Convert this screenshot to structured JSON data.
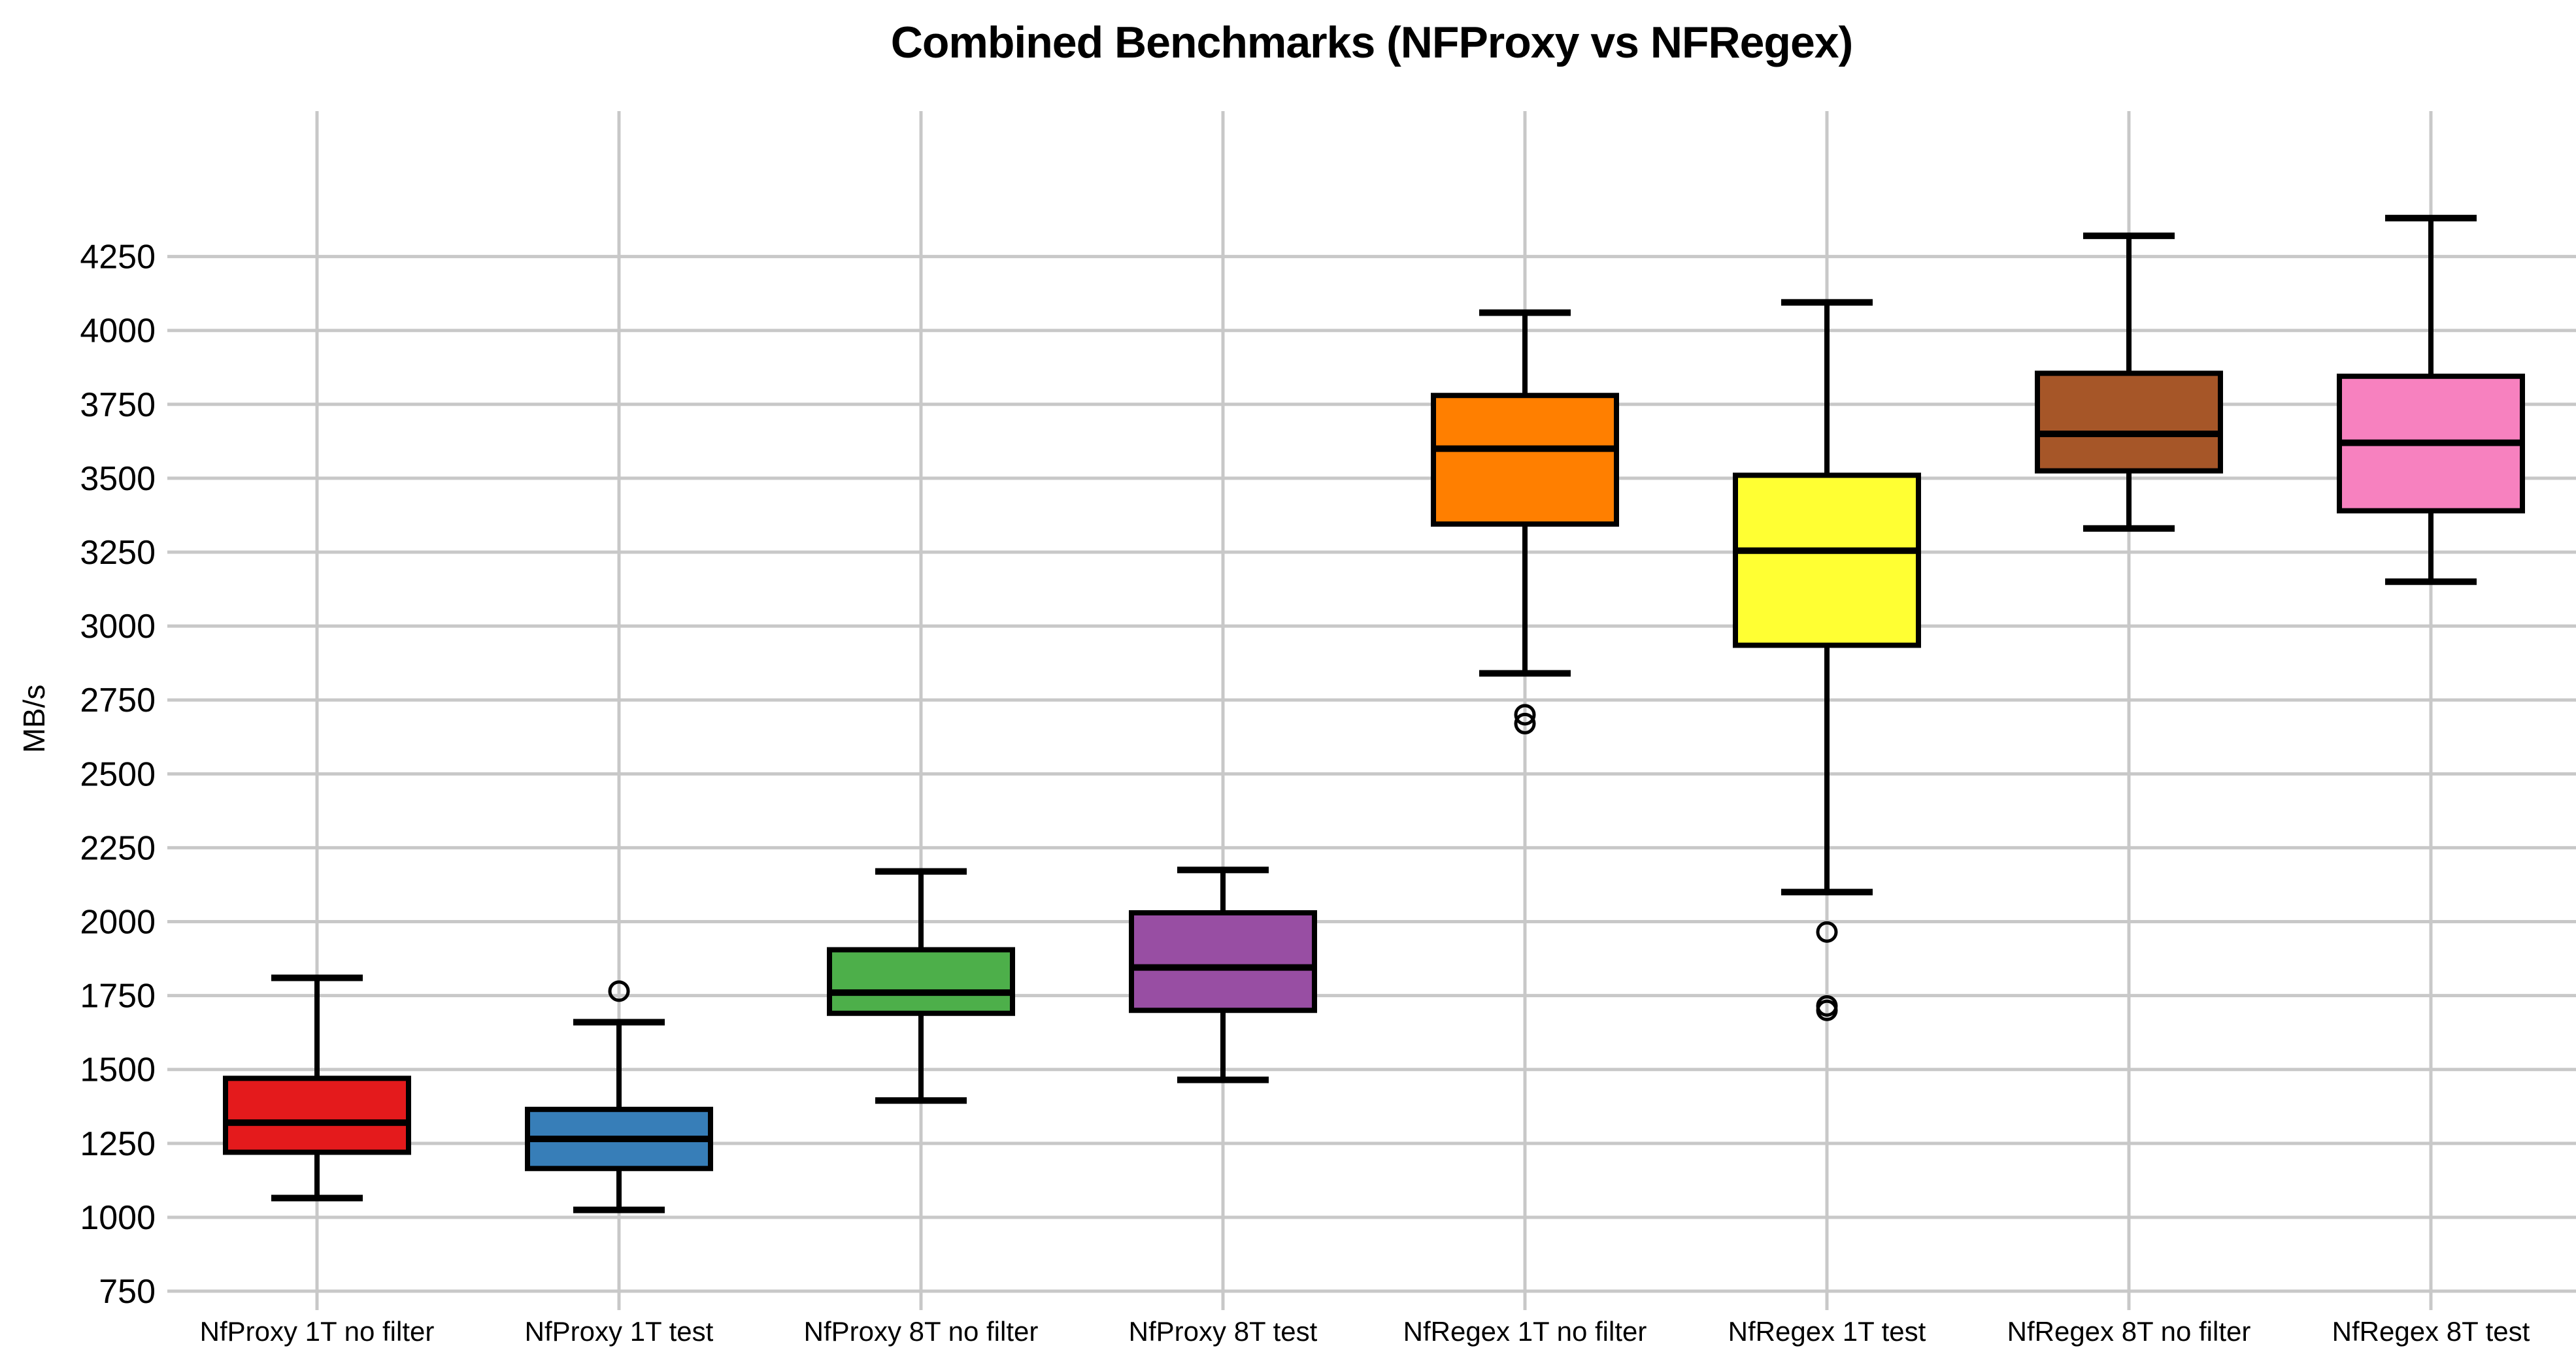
{
  "page": {
    "background": "#ffffff"
  },
  "chart_data": {
    "type": "box",
    "title": "Combined Benchmarks (NFProxy vs NFRegex)",
    "ylabel": "MB/s",
    "xlabel": "",
    "ylim": [
      686,
      4742
    ],
    "yticks": [
      750,
      1000,
      1250,
      1500,
      1750,
      2000,
      2250,
      2500,
      2750,
      3000,
      3250,
      3500,
      3750,
      4000,
      4250
    ],
    "grid": "both",
    "grid_color": "#c8c8c8",
    "legend": "none",
    "boxes": [
      {
        "label": "NfProxy 1T no filter",
        "color": "#e41a1c",
        "whisker_low": 1065,
        "q1": 1220,
        "median": 1320,
        "q3": 1470,
        "whisker_high": 1810,
        "outliers": []
      },
      {
        "label": "NfProxy 1T test",
        "color": "#377eb8",
        "whisker_low": 1025,
        "q1": 1165,
        "median": 1265,
        "q3": 1365,
        "whisker_high": 1660,
        "outliers": [
          1765
        ]
      },
      {
        "label": "NfProxy 8T no filter",
        "color": "#4daf4a",
        "whisker_low": 1395,
        "q1": 1690,
        "median": 1760,
        "q3": 1905,
        "whisker_high": 2170,
        "outliers": []
      },
      {
        "label": "NfProxy 8T test",
        "color": "#984ea3",
        "whisker_low": 1465,
        "q1": 1700,
        "median": 1845,
        "q3": 2030,
        "whisker_high": 2175,
        "outliers": []
      },
      {
        "label": "NfRegex 1T no filter",
        "color": "#ff7f00",
        "whisker_low": 2840,
        "q1": 3345,
        "median": 3600,
        "q3": 3780,
        "whisker_high": 4060,
        "outliers": [
          2700,
          2670
        ]
      },
      {
        "label": "NfRegex 1T test",
        "color": "#ffff33",
        "whisker_low": 2100,
        "q1": 2935,
        "median": 3255,
        "q3": 3510,
        "whisker_high": 4095,
        "outliers": [
          1965,
          1715,
          1700
        ]
      },
      {
        "label": "NfRegex 8T no filter",
        "color": "#a65628",
        "whisker_low": 3330,
        "q1": 3525,
        "median": 3650,
        "q3": 3855,
        "whisker_high": 4320,
        "outliers": []
      },
      {
        "label": "NfRegex 8T test",
        "color": "#f781bf",
        "whisker_low": 3150,
        "q1": 3390,
        "median": 3620,
        "q3": 3845,
        "whisker_high": 4380,
        "outliers": []
      }
    ]
  }
}
